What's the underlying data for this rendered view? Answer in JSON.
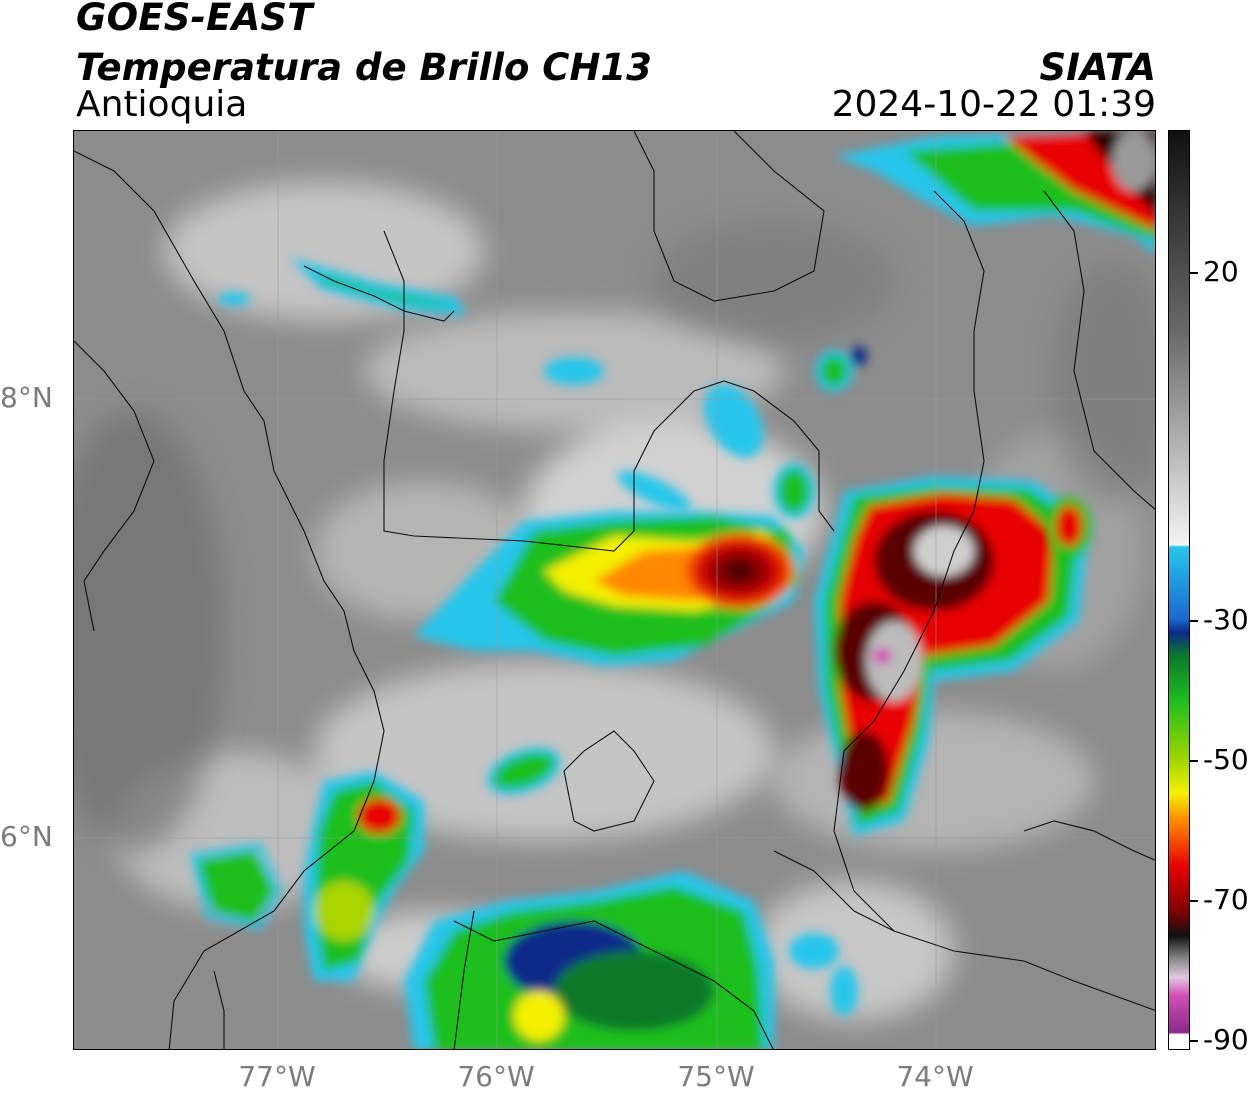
{
  "header": {
    "satellite": "GOES-EAST",
    "product": "Temperatura de Brillo CH13",
    "region": "Antioquia",
    "organization": "SIATA",
    "datetime": "2024-10-22 01:39"
  },
  "map": {
    "latitude_labels": [
      "8°N",
      "6°N"
    ],
    "longitude_labels": [
      "77°W",
      "76°W",
      "75°W",
      "74°W"
    ]
  },
  "colorbar": {
    "tick_labels": [
      "20",
      "-30",
      "-50",
      "-70",
      "-90"
    ],
    "colors": {
      "black": "#111111",
      "dark_red": "#7a0000",
      "red": "#e80000",
      "orange": "#ff8800",
      "yellow": "#f4f000",
      "green": "#1fbf1f",
      "dark_green": "#0a7a2a",
      "navy": "#0a2a88",
      "blue": "#1a6ad0",
      "cyan": "#27c6ea",
      "magenta": "#d24fb5",
      "purple": "#8a2a8a",
      "gray_light": "#e8e8e8",
      "gray_dark": "#555555"
    }
  }
}
